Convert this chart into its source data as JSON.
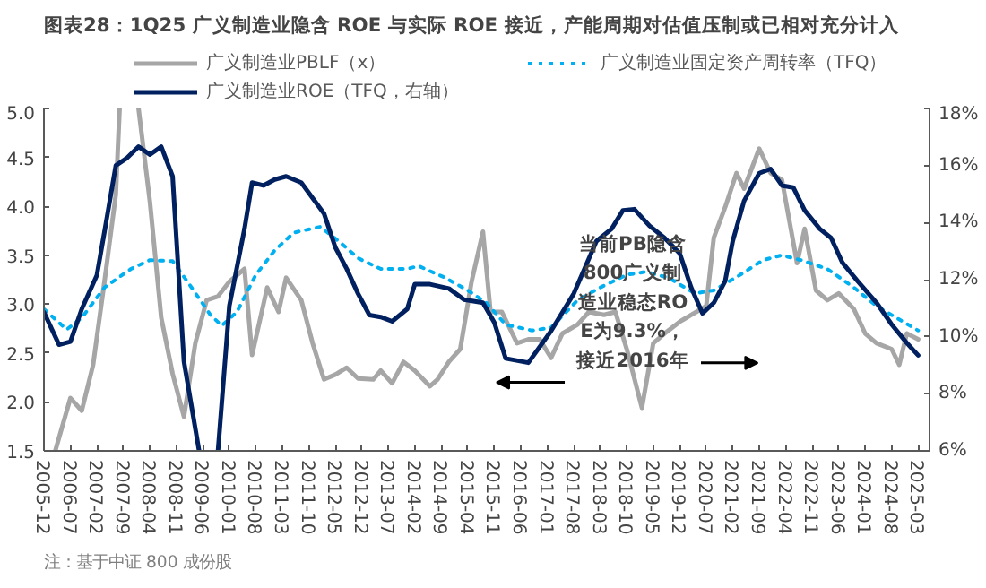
{
  "chart_data": {
    "type": "line",
    "title": "图表28：1Q25 广义制造业隐含 ROE 与实际 ROE 接近，产能周期对估值压制或已相对充分计入",
    "xlim": [
      "2005-12",
      "2025-06"
    ],
    "xticks": [
      "2005-12",
      "2006-07",
      "2007-02",
      "2007-09",
      "2008-04",
      "2008-11",
      "2009-06",
      "2010-01",
      "2010-08",
      "2011-03",
      "2011-10",
      "2012-05",
      "2012-12",
      "2013-07",
      "2014-02",
      "2014-09",
      "2015-04",
      "2015-11",
      "2016-06",
      "2017-01",
      "2017-08",
      "2018-03",
      "2018-10",
      "2019-05",
      "2019-12",
      "2020-07",
      "2021-02",
      "2021-09",
      "2022-04",
      "2022-11",
      "2023-06",
      "2024-01",
      "2024-08",
      "2025-03"
    ],
    "ylim": [
      1.5,
      5.0
    ],
    "yticks": [
      1.5,
      {
        "value": 2,
        "label": "2.0"
      },
      2.5,
      {
        "value": 3,
        "label": "3.0"
      },
      3.5,
      {
        "value": 4,
        "label": "4.0"
      },
      4.5,
      {
        "value": 5,
        "label": "5.0"
      }
    ],
    "y2lim": [
      6,
      18
    ],
    "y2ticks": [
      {
        "value": 6,
        "label": "6%"
      },
      {
        "value": 8,
        "label": "8%"
      },
      {
        "value": 10,
        "label": "10%"
      },
      {
        "value": 12,
        "label": "12%"
      },
      {
        "value": 14,
        "label": "14%"
      },
      {
        "value": 16,
        "label": "16%"
      },
      {
        "value": 18,
        "label": "18%"
      }
    ],
    "grid": false,
    "legend": "top",
    "series": [
      {
        "name": "广义制造业PBLF（x）",
        "color": "#a6a6a6",
        "line_style": "solid",
        "x": [
          "2006-03",
          "2006-07",
          "2006-10",
          "2007-01",
          "2007-04",
          "2007-07",
          "2007-08",
          "2007-12",
          "2008-01",
          "2008-04",
          "2008-07",
          "2008-10",
          "2009-01",
          "2009-04",
          "2009-07",
          "2009-10",
          "2010-01",
          "2010-05",
          "2010-07",
          "2010-11",
          "2011-02",
          "2011-04",
          "2011-08",
          "2011-11",
          "2012-02",
          "2012-05",
          "2012-08",
          "2012-11",
          "2013-03",
          "2013-05",
          "2013-08",
          "2013-11",
          "2014-02",
          "2014-06",
          "2014-08",
          "2014-11",
          "2015-02",
          "2015-05",
          "2015-08",
          "2015-10",
          "2016-01",
          "2016-05",
          "2016-08",
          "2016-11",
          "2017-02",
          "2017-05",
          "2017-09",
          "2017-12",
          "2018-04",
          "2018-07",
          "2018-10",
          "2019-02",
          "2019-05",
          "2019-08",
          "2019-12",
          "2020-03",
          "2020-07",
          "2020-09",
          "2020-12",
          "2021-03",
          "2021-05",
          "2021-09",
          "2021-12",
          "2022-03",
          "2022-07",
          "2022-09",
          "2022-12",
          "2023-03",
          "2023-06",
          "2023-10",
          "2024-01",
          "2024-04",
          "2024-08",
          "2024-10",
          "2024-12",
          "2025-03"
        ],
        "values": [
          1.5,
          2.04,
          1.91,
          2.38,
          3.23,
          4.12,
          5.0,
          null,
          5.0,
          4.05,
          2.86,
          2.29,
          1.85,
          2.6,
          3.04,
          3.08,
          3.23,
          3.36,
          2.48,
          3.17,
          2.92,
          3.27,
          3.04,
          2.6,
          2.23,
          2.28,
          2.35,
          2.24,
          2.23,
          2.32,
          2.19,
          2.41,
          2.32,
          2.16,
          2.23,
          2.41,
          2.54,
          3.23,
          3.74,
          2.92,
          2.92,
          2.6,
          2.64,
          2.64,
          2.45,
          2.7,
          2.79,
          2.92,
          2.89,
          2.92,
          2.54,
          1.94,
          2.6,
          2.7,
          2.82,
          2.89,
          2.98,
          3.68,
          3.99,
          4.34,
          4.18,
          4.59,
          4.34,
          4.27,
          3.42,
          3.77,
          3.14,
          3.04,
          3.11,
          2.95,
          2.7,
          2.6,
          2.54,
          2.38,
          2.7,
          2.64
        ]
      },
      {
        "name": "广义制造业固定资产周转率（TFQ）",
        "color": "#00b0f0",
        "line_style": "dotted",
        "x": [
          "2005-12",
          "2006-06",
          "2006-10",
          "2007-04",
          "2007-11",
          "2008-04",
          "2008-10",
          "2009-03",
          "2009-08",
          "2009-11",
          "2010-03",
          "2010-08",
          "2011-01",
          "2011-06",
          "2012-01",
          "2012-06",
          "2012-11",
          "2013-05",
          "2013-12",
          "2014-03",
          "2014-10",
          "2015-04",
          "2015-09",
          "2016-02",
          "2016-09",
          "2017-02",
          "2017-09",
          "2018-03",
          "2018-10",
          "2019-03",
          "2019-09",
          "2020-04",
          "2020-09",
          "2021-04",
          "2021-10",
          "2022-03",
          "2022-08",
          "2023-03",
          "2023-10",
          "2024-04",
          "2024-11",
          "2025-03"
        ],
        "values": [
          2.95,
          2.74,
          2.86,
          3.17,
          3.36,
          3.45,
          3.44,
          3.17,
          2.89,
          2.78,
          2.92,
          3.3,
          3.55,
          3.73,
          3.79,
          3.64,
          3.47,
          3.36,
          3.36,
          3.39,
          3.27,
          3.14,
          3.01,
          2.79,
          2.73,
          2.76,
          3.04,
          3.17,
          3.3,
          3.33,
          3.27,
          3.11,
          3.14,
          3.3,
          3.45,
          3.5,
          3.45,
          3.36,
          3.17,
          2.98,
          2.82,
          2.73
        ]
      },
      {
        "name": "广义制造业ROE（TFQ，右轴）",
        "color": "#002060",
        "line_style": "solid",
        "axis": "y2",
        "x": [
          "2005-12",
          "2006-04",
          "2006-07",
          "2006-10",
          "2007-02",
          "2007-04",
          "2007-07",
          "2007-10",
          "2008-01",
          "2008-04",
          "2008-07",
          "2008-10",
          "2009-01",
          "2009-05",
          "2009-08",
          "2009-10",
          "2010-01",
          "2010-05",
          "2010-07",
          "2010-10",
          "2011-01",
          "2011-04",
          "2011-08",
          "2011-11",
          "2012-02",
          "2012-05",
          "2012-08",
          "2012-11",
          "2013-02",
          "2013-05",
          "2013-08",
          "2013-12",
          "2014-02",
          "2014-06",
          "2014-11",
          "2015-03",
          "2015-08",
          "2015-11",
          "2016-02",
          "2016-08",
          "2017-02",
          "2017-08",
          "2018-02",
          "2018-06",
          "2018-09",
          "2018-12",
          "2019-04",
          "2019-08",
          "2019-12",
          "2020-03",
          "2020-06",
          "2020-09",
          "2020-12",
          "2021-02",
          "2021-05",
          "2021-09",
          "2021-12",
          "2022-03",
          "2022-06",
          "2022-09",
          "2023-01",
          "2023-04",
          "2023-07",
          "2023-11",
          "2024-04",
          "2024-08",
          "2024-12",
          "2025-03"
        ],
        "values": [
          10.86,
          9.72,
          9.83,
          10.97,
          12.16,
          13.68,
          16.0,
          16.27,
          16.66,
          16.38,
          16.66,
          15.62,
          9.13,
          6.0,
          null,
          6.0,
          11.08,
          13.78,
          15.4,
          15.3,
          15.51,
          15.62,
          15.4,
          14.86,
          14.32,
          13.13,
          12.38,
          11.51,
          10.76,
          10.69,
          10.54,
          10.97,
          11.84,
          11.84,
          11.69,
          11.3,
          11.19,
          10.5,
          9.24,
          9.09,
          10.2,
          11.51,
          13.35,
          13.78,
          14.43,
          14.47,
          13.89,
          13.46,
          12.92,
          11.73,
          10.82,
          11.19,
          11.95,
          13.35,
          14.76,
          15.73,
          15.88,
          15.3,
          15.23,
          14.43,
          13.78,
          13.46,
          12.59,
          11.95,
          11.19,
          10.43,
          9.78,
          9.35
        ]
      }
    ],
    "annotations": [
      "当前PB隐含800广义制造业稳态ROE为9.3%，接近2016年",
      "注：基于中证 800 成份股"
    ]
  }
}
